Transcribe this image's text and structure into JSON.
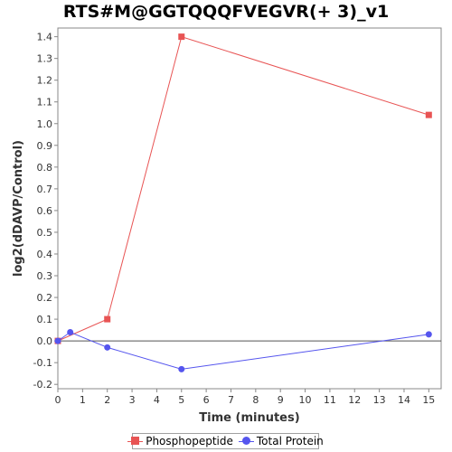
{
  "chart_data": {
    "type": "line",
    "title": "RTS#M@GGTQQQFVEGVR(+ 3)_v1",
    "xlabel": "Time (minutes)",
    "ylabel": "log2(dDAVP/Control)",
    "xlim": [
      0,
      15.5
    ],
    "ylim": [
      -0.22,
      1.44
    ],
    "xticks": [
      0,
      1,
      2,
      3,
      4,
      5,
      6,
      7,
      8,
      9,
      10,
      11,
      12,
      13,
      14,
      15
    ],
    "yticks": [
      -0.2,
      -0.1,
      0.0,
      0.1,
      0.2,
      0.3,
      0.4,
      0.5,
      0.6,
      0.7,
      0.8,
      0.9,
      1.0,
      1.1,
      1.2,
      1.3,
      1.4
    ],
    "ytick_labels": [
      "-0.2",
      "-0.1",
      "0.0",
      "0.1",
      "0.2",
      "0.3",
      "0.4",
      "0.5",
      "0.6",
      "0.7",
      "0.8",
      "0.9",
      "1.0",
      "1.1",
      "1.2",
      "1.3",
      "1.4"
    ],
    "grid": false,
    "legend_position": "bottom",
    "series": [
      {
        "name": "Phosphopeptide",
        "color": "#e85454",
        "marker": "square",
        "x": [
          0,
          2,
          5,
          15
        ],
        "y": [
          0.0,
          0.1,
          1.4,
          1.04
        ]
      },
      {
        "name": "Total Protein",
        "color": "#5555ee",
        "marker": "circle",
        "x": [
          0,
          0.5,
          2,
          5,
          15
        ],
        "y": [
          0.0,
          0.04,
          -0.03,
          -0.13,
          0.03
        ]
      }
    ]
  }
}
